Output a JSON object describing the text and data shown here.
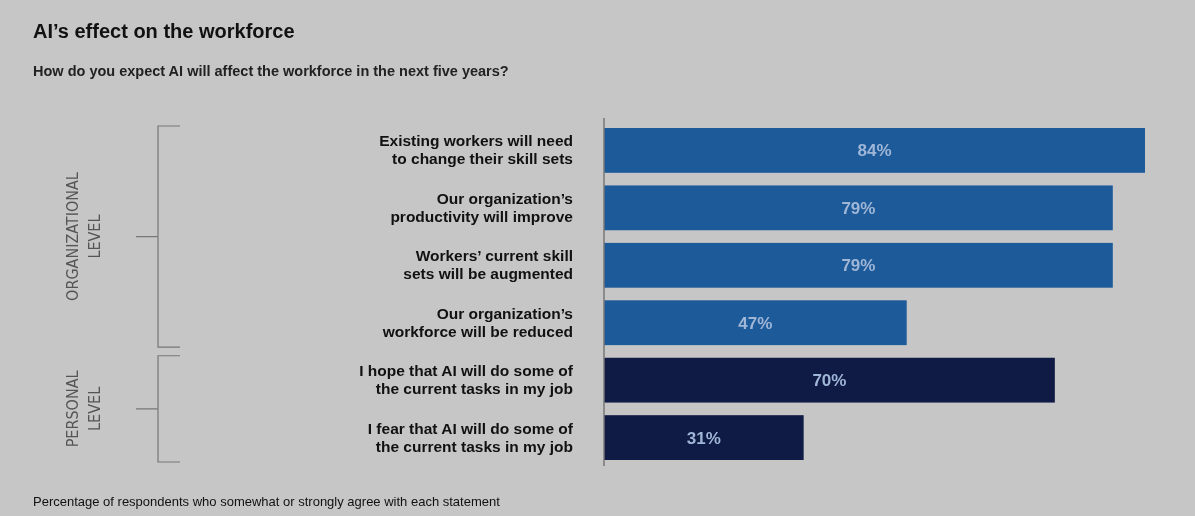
{
  "chart_data": {
    "type": "bar",
    "orientation": "horizontal",
    "title": "AI’s effect on the workforce",
    "subtitle": "How do you expect  AI will affect the workforce in the next five years?",
    "categories": [
      "Existing workers will need to change their skill sets",
      "Our organization’s productivity will improve",
      "Workers’ current skill sets will be augmented",
      "Our organization’s workforce will be reduced",
      "I hope that AI will do some of the current tasks in my job",
      "I fear that AI will do some of the current  tasks in my job"
    ],
    "values": [
      84,
      79,
      79,
      47,
      70,
      31
    ],
    "colors": [
      "#1d5a9a",
      "#1d5a9a",
      "#1d5a9a",
      "#1d5a9a",
      "#0f1a45",
      "#0f1a45"
    ],
    "value_labels": [
      "84%",
      "79%",
      "79%",
      "47%",
      "70%",
      "31%"
    ],
    "annotations": [
      "ORGANIZATIONAL LEVEL",
      "PERSONAL LEVEL",
      "Percentage of respondents who somewhat or strongly agree with each statement"
    ]
  }
}
